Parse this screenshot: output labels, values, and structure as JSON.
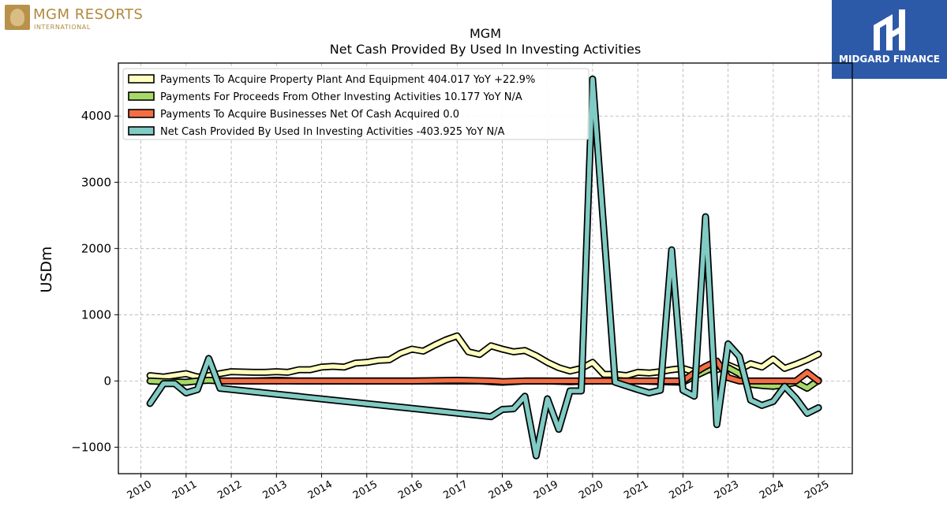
{
  "logos": {
    "left_name": "MGM RESORTS",
    "left_sub": "INTERNATIONAL",
    "right_name": "MIDGARD FINANCE"
  },
  "chart_data": {
    "type": "line",
    "title": "MGM",
    "subtitle": "Net Cash Provided By Used In Investing Activities",
    "xlabel": "",
    "ylabel": "USDm",
    "xlim": [
      2009.5,
      2025.75
    ],
    "ylim": [
      -1400,
      4800
    ],
    "xticks": [
      2010,
      2011,
      2012,
      2013,
      2014,
      2015,
      2016,
      2017,
      2018,
      2019,
      2020,
      2021,
      2022,
      2023,
      2024,
      2025
    ],
    "yticks": [
      -1000,
      0,
      1000,
      2000,
      3000,
      4000
    ],
    "ytick_labels": [
      "−1000",
      "0",
      "1000",
      "2000",
      "3000",
      "4000"
    ],
    "grid": true,
    "legend_position": "top-left",
    "series": [
      {
        "name": "Payments To Acquire Property Plant And Equipment  404.017 YoY +22.9%",
        "color": "#ffffbf",
        "points": [
          [
            2010.2,
            80
          ],
          [
            2010.5,
            60
          ],
          [
            2011.0,
            110
          ],
          [
            2011.25,
            60
          ],
          [
            2011.5,
            80
          ],
          [
            2011.75,
            110
          ],
          [
            2012.0,
            140
          ],
          [
            2012.5,
            130
          ],
          [
            2012.75,
            130
          ],
          [
            2013.0,
            140
          ],
          [
            2013.25,
            130
          ],
          [
            2013.5,
            170
          ],
          [
            2013.75,
            170
          ],
          [
            2014.0,
            210
          ],
          [
            2014.25,
            220
          ],
          [
            2014.5,
            210
          ],
          [
            2014.75,
            270
          ],
          [
            2015.0,
            280
          ],
          [
            2015.25,
            310
          ],
          [
            2015.5,
            320
          ],
          [
            2015.75,
            420
          ],
          [
            2016.0,
            480
          ],
          [
            2016.25,
            450
          ],
          [
            2016.5,
            540
          ],
          [
            2016.75,
            620
          ],
          [
            2017.0,
            680
          ],
          [
            2017.25,
            440
          ],
          [
            2017.5,
            400
          ],
          [
            2017.75,
            530
          ],
          [
            2018.0,
            480
          ],
          [
            2018.25,
            440
          ],
          [
            2018.5,
            460
          ],
          [
            2018.75,
            380
          ],
          [
            2019.0,
            280
          ],
          [
            2019.25,
            200
          ],
          [
            2019.5,
            150
          ],
          [
            2019.75,
            190
          ],
          [
            2020.0,
            280
          ],
          [
            2020.25,
            100
          ],
          [
            2020.5,
            100
          ],
          [
            2020.75,
            80
          ],
          [
            2021.0,
            130
          ],
          [
            2021.25,
            120
          ],
          [
            2021.5,
            140
          ],
          [
            2021.75,
            170
          ],
          [
            2022.0,
            190
          ],
          [
            2022.25,
            140
          ],
          [
            2022.5,
            170
          ],
          [
            2022.75,
            170
          ],
          [
            2023.0,
            240
          ],
          [
            2023.25,
            170
          ],
          [
            2023.5,
            260
          ],
          [
            2023.75,
            210
          ],
          [
            2024.0,
            330
          ],
          [
            2024.25,
            190
          ],
          [
            2024.5,
            250
          ],
          [
            2024.75,
            320
          ],
          [
            2025.0,
            404
          ]
        ]
      },
      {
        "name": "Payments For Proceeds From Other Investing Activities  10.177 YoY N/A",
        "color": "#a6d96a",
        "points": [
          [
            2010.2,
            0
          ],
          [
            2010.5,
            -10
          ],
          [
            2011.0,
            -20
          ],
          [
            2011.25,
            0
          ],
          [
            2011.5,
            10
          ],
          [
            2011.75,
            0
          ],
          [
            2012.0,
            0
          ],
          [
            2012.5,
            0
          ],
          [
            2013.0,
            10
          ],
          [
            2013.5,
            0
          ],
          [
            2014.0,
            0
          ],
          [
            2014.5,
            0
          ],
          [
            2015.0,
            0
          ],
          [
            2015.5,
            0
          ],
          [
            2016.0,
            0
          ],
          [
            2016.5,
            0
          ],
          [
            2017.0,
            0
          ],
          [
            2017.5,
            0
          ],
          [
            2018.0,
            -20
          ],
          [
            2018.5,
            0
          ],
          [
            2019.0,
            0
          ],
          [
            2019.5,
            -10
          ],
          [
            2020.0,
            0
          ],
          [
            2020.5,
            0
          ],
          [
            2021.0,
            0
          ],
          [
            2021.5,
            -10
          ],
          [
            2022.0,
            -20
          ],
          [
            2022.25,
            70
          ],
          [
            2022.5,
            150
          ],
          [
            2022.75,
            230
          ],
          [
            2023.0,
            200
          ],
          [
            2023.25,
            110
          ],
          [
            2023.5,
            -50
          ],
          [
            2023.75,
            -70
          ],
          [
            2024.0,
            -80
          ],
          [
            2024.25,
            -60
          ],
          [
            2024.5,
            -20
          ],
          [
            2024.75,
            -110
          ],
          [
            2025.0,
            10
          ]
        ]
      },
      {
        "name": "Payments To Acquire Businesses Net Of Cash Acquired  0.0",
        "color": "#f46d43",
        "points": [
          [
            2011.75,
            0
          ],
          [
            2012.5,
            0
          ],
          [
            2013.0,
            0
          ],
          [
            2014.0,
            0
          ],
          [
            2015.0,
            0
          ],
          [
            2016.0,
            0
          ],
          [
            2017.0,
            10
          ],
          [
            2017.75,
            0
          ],
          [
            2018.0,
            -10
          ],
          [
            2018.5,
            0
          ],
          [
            2019.0,
            0
          ],
          [
            2020.0,
            0
          ],
          [
            2021.0,
            0
          ],
          [
            2021.75,
            0
          ],
          [
            2022.0,
            0
          ],
          [
            2022.25,
            120
          ],
          [
            2022.5,
            220
          ],
          [
            2022.75,
            300
          ],
          [
            2023.0,
            50
          ],
          [
            2023.25,
            0
          ],
          [
            2024.0,
            0
          ],
          [
            2024.5,
            0
          ],
          [
            2024.75,
            130
          ],
          [
            2025.0,
            0
          ]
        ]
      },
      {
        "name": "Net Cash Provided By Used In Investing Activities  -403.925 YoY N/A",
        "color": "#80cbc4",
        "points": [
          [
            2010.2,
            -340
          ],
          [
            2010.5,
            -40
          ],
          [
            2010.75,
            -40
          ],
          [
            2011.0,
            -180
          ],
          [
            2011.25,
            -130
          ],
          [
            2011.5,
            340
          ],
          [
            2011.75,
            -110
          ],
          [
            2017.75,
            -540
          ],
          [
            2018.0,
            -430
          ],
          [
            2018.25,
            -420
          ],
          [
            2018.5,
            -230
          ],
          [
            2018.75,
            -1130
          ],
          [
            2019.0,
            -270
          ],
          [
            2019.25,
            -730
          ],
          [
            2019.5,
            -150
          ],
          [
            2019.75,
            -150
          ],
          [
            2020.0,
            4560
          ],
          [
            2020.5,
            -20
          ],
          [
            2021.0,
            -130
          ],
          [
            2021.25,
            -180
          ],
          [
            2021.5,
            -140
          ],
          [
            2021.75,
            1980
          ],
          [
            2022.0,
            -140
          ],
          [
            2022.25,
            -230
          ],
          [
            2022.5,
            2480
          ],
          [
            2022.75,
            -660
          ],
          [
            2023.0,
            560
          ],
          [
            2023.25,
            370
          ],
          [
            2023.5,
            -290
          ],
          [
            2023.75,
            -370
          ],
          [
            2024.0,
            -310
          ],
          [
            2024.25,
            -80
          ],
          [
            2024.5,
            -260
          ],
          [
            2024.75,
            -490
          ],
          [
            2025.0,
            -404
          ]
        ]
      }
    ]
  }
}
